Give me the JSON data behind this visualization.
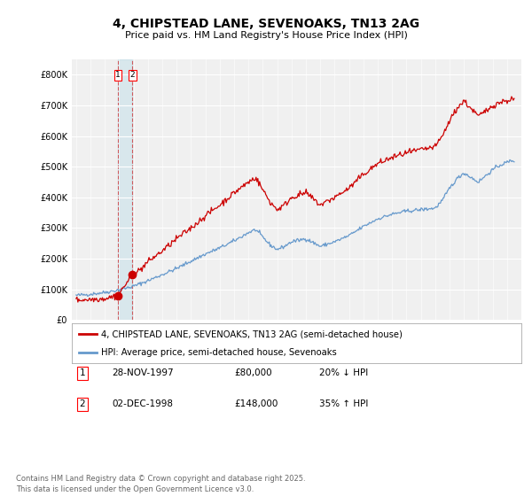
{
  "title": "4, CHIPSTEAD LANE, SEVENOAKS, TN13 2AG",
  "subtitle": "Price paid vs. HM Land Registry's House Price Index (HPI)",
  "line1_label": "4, CHIPSTEAD LANE, SEVENOAKS, TN13 2AG (semi-detached house)",
  "line2_label": "HPI: Average price, semi-detached house, Sevenoaks",
  "line1_color": "#cc0000",
  "line2_color": "#6699cc",
  "sale1_date": 1997.91,
  "sale1_price": 80000,
  "sale2_date": 1998.92,
  "sale2_price": 148000,
  "footer": "Contains HM Land Registry data © Crown copyright and database right 2025.\nThis data is licensed under the Open Government Licence v3.0.",
  "ylim_min": 0,
  "ylim_max": 850000,
  "xlim_min": 1994.7,
  "xlim_max": 2026.0,
  "background_color": "#ffffff",
  "plot_bg_color": "#f0f0f0",
  "hpi_knots_x": [
    1995,
    1996,
    1997,
    1998,
    1999,
    2000,
    2001,
    2002,
    2003,
    2004,
    2005,
    2006,
    2007,
    2007.5,
    2008,
    2008.5,
    2009,
    2009.5,
    2010,
    2011,
    2012,
    2013,
    2014,
    2015,
    2016,
    2017,
    2018,
    2019,
    2020,
    2020.5,
    2021,
    2021.5,
    2022,
    2022.5,
    2023,
    2023.5,
    2024,
    2024.5,
    2025.3
  ],
  "hpi_knots_y": [
    80000,
    84000,
    90000,
    98000,
    110000,
    128000,
    148000,
    168000,
    192000,
    215000,
    235000,
    258000,
    285000,
    295000,
    270000,
    245000,
    230000,
    240000,
    255000,
    265000,
    240000,
    255000,
    275000,
    305000,
    330000,
    345000,
    355000,
    360000,
    365000,
    390000,
    430000,
    460000,
    480000,
    465000,
    450000,
    470000,
    490000,
    505000,
    520000
  ],
  "price_knots_x": [
    1995,
    1996,
    1997,
    1997.91,
    1998.92,
    1999.5,
    2000,
    2001,
    2002,
    2003,
    2004,
    2005,
    2006,
    2007,
    2007.5,
    2008,
    2008.5,
    2009,
    2009.5,
    2010,
    2011,
    2012,
    2013,
    2014,
    2015,
    2016,
    2017,
    2018,
    2019,
    2020,
    2020.5,
    2021,
    2021.5,
    2022,
    2022.5,
    2023,
    2023.5,
    2024,
    2024.5,
    2025.3
  ],
  "price_knots_y": [
    65000,
    67000,
    70000,
    80000,
    148000,
    165000,
    190000,
    225000,
    265000,
    300000,
    340000,
    375000,
    415000,
    450000,
    465000,
    425000,
    385000,
    360000,
    375000,
    400000,
    415000,
    375000,
    400000,
    430000,
    475000,
    510000,
    530000,
    545000,
    555000,
    565000,
    600000,
    650000,
    690000,
    715000,
    690000,
    665000,
    680000,
    700000,
    710000,
    720000
  ],
  "noise_seed": 42,
  "hpi_noise_std": 3000,
  "price_noise_std": 5000
}
